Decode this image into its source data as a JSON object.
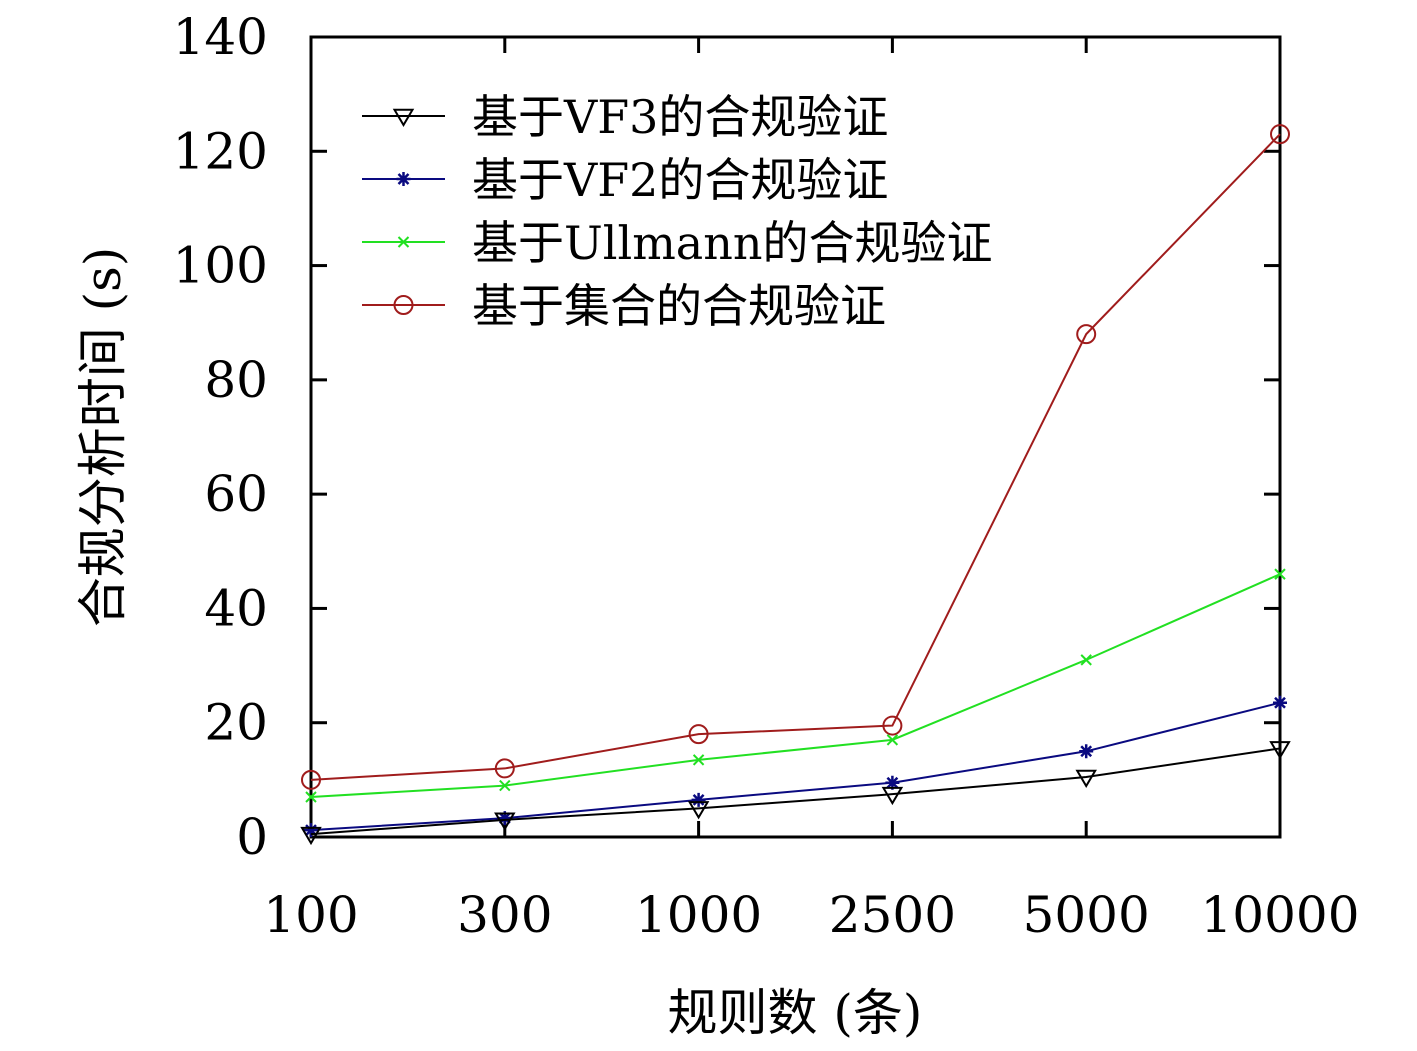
{
  "chart_data": {
    "type": "line",
    "title": "",
    "xlabel": "规则数 (条)",
    "ylabel": "合规分析时间 (s)",
    "categories": [
      "100",
      "300",
      "1000",
      "2500",
      "5000",
      "10000"
    ],
    "ylim": [
      0,
      140
    ],
    "yticks": [
      0,
      20,
      40,
      60,
      80,
      100,
      120,
      140
    ],
    "grid": false,
    "legend_position": "top-left",
    "series": [
      {
        "name": "基于VF3的合规验证",
        "color": "#000000",
        "marker": "triangle-down-icon",
        "values": [
          0.5,
          3,
          5,
          7.5,
          10.5,
          15.5
        ]
      },
      {
        "name": "基于VF2的合规验证",
        "color": "#0a0a80",
        "marker": "asterisk-icon",
        "values": [
          1.2,
          3.3,
          6.5,
          9.5,
          15,
          23.5
        ]
      },
      {
        "name": "基于Ullmann的合规验证",
        "color": "#22e022",
        "marker": "cross-icon",
        "values": [
          7,
          9,
          13.5,
          17,
          31,
          46
        ]
      },
      {
        "name": "基于集合的合规验证",
        "color": "#a01c1c",
        "marker": "circle-icon",
        "values": [
          10,
          12,
          18,
          19.5,
          88,
          123
        ]
      }
    ]
  }
}
